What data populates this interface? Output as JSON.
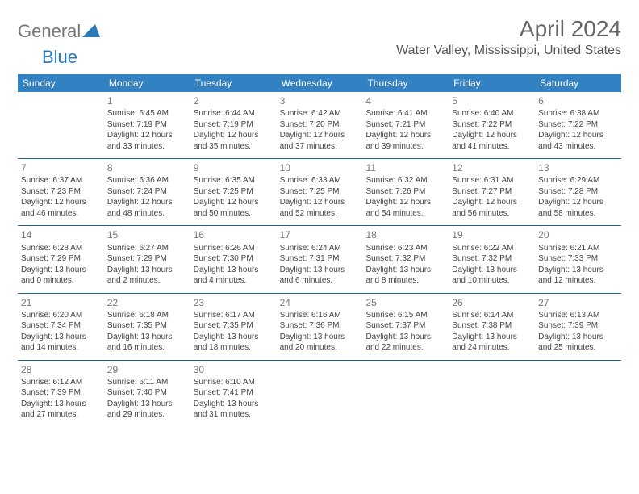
{
  "brand": {
    "part1": "General",
    "part2": "Blue"
  },
  "title": "April 2024",
  "location": "Water Valley, Mississippi, United States",
  "colors": {
    "header_bg": "#3282c3",
    "header_fg": "#ffffff",
    "week_border": "#1f5f8f",
    "body_bg": "#ffffff",
    "text": "#555",
    "brand_gray": "#777",
    "brand_blue": "#2b78b8"
  },
  "typography": {
    "title_fontsize": 28,
    "location_fontsize": 16,
    "dayheader_fontsize": 12,
    "daynum_fontsize": 12,
    "cell_fontsize": 10,
    "logo_fontsize": 22
  },
  "day_names": [
    "Sunday",
    "Monday",
    "Tuesday",
    "Wednesday",
    "Thursday",
    "Friday",
    "Saturday"
  ],
  "weeks": [
    [
      null,
      {
        "n": "1",
        "sr": "Sunrise: 6:45 AM",
        "ss": "Sunset: 7:19 PM",
        "d1": "Daylight: 12 hours",
        "d2": "and 33 minutes."
      },
      {
        "n": "2",
        "sr": "Sunrise: 6:44 AM",
        "ss": "Sunset: 7:19 PM",
        "d1": "Daylight: 12 hours",
        "d2": "and 35 minutes."
      },
      {
        "n": "3",
        "sr": "Sunrise: 6:42 AM",
        "ss": "Sunset: 7:20 PM",
        "d1": "Daylight: 12 hours",
        "d2": "and 37 minutes."
      },
      {
        "n": "4",
        "sr": "Sunrise: 6:41 AM",
        "ss": "Sunset: 7:21 PM",
        "d1": "Daylight: 12 hours",
        "d2": "and 39 minutes."
      },
      {
        "n": "5",
        "sr": "Sunrise: 6:40 AM",
        "ss": "Sunset: 7:22 PM",
        "d1": "Daylight: 12 hours",
        "d2": "and 41 minutes."
      },
      {
        "n": "6",
        "sr": "Sunrise: 6:38 AM",
        "ss": "Sunset: 7:22 PM",
        "d1": "Daylight: 12 hours",
        "d2": "and 43 minutes."
      }
    ],
    [
      {
        "n": "7",
        "sr": "Sunrise: 6:37 AM",
        "ss": "Sunset: 7:23 PM",
        "d1": "Daylight: 12 hours",
        "d2": "and 46 minutes."
      },
      {
        "n": "8",
        "sr": "Sunrise: 6:36 AM",
        "ss": "Sunset: 7:24 PM",
        "d1": "Daylight: 12 hours",
        "d2": "and 48 minutes."
      },
      {
        "n": "9",
        "sr": "Sunrise: 6:35 AM",
        "ss": "Sunset: 7:25 PM",
        "d1": "Daylight: 12 hours",
        "d2": "and 50 minutes."
      },
      {
        "n": "10",
        "sr": "Sunrise: 6:33 AM",
        "ss": "Sunset: 7:25 PM",
        "d1": "Daylight: 12 hours",
        "d2": "and 52 minutes."
      },
      {
        "n": "11",
        "sr": "Sunrise: 6:32 AM",
        "ss": "Sunset: 7:26 PM",
        "d1": "Daylight: 12 hours",
        "d2": "and 54 minutes."
      },
      {
        "n": "12",
        "sr": "Sunrise: 6:31 AM",
        "ss": "Sunset: 7:27 PM",
        "d1": "Daylight: 12 hours",
        "d2": "and 56 minutes."
      },
      {
        "n": "13",
        "sr": "Sunrise: 6:29 AM",
        "ss": "Sunset: 7:28 PM",
        "d1": "Daylight: 12 hours",
        "d2": "and 58 minutes."
      }
    ],
    [
      {
        "n": "14",
        "sr": "Sunrise: 6:28 AM",
        "ss": "Sunset: 7:29 PM",
        "d1": "Daylight: 13 hours",
        "d2": "and 0 minutes."
      },
      {
        "n": "15",
        "sr": "Sunrise: 6:27 AM",
        "ss": "Sunset: 7:29 PM",
        "d1": "Daylight: 13 hours",
        "d2": "and 2 minutes."
      },
      {
        "n": "16",
        "sr": "Sunrise: 6:26 AM",
        "ss": "Sunset: 7:30 PM",
        "d1": "Daylight: 13 hours",
        "d2": "and 4 minutes."
      },
      {
        "n": "17",
        "sr": "Sunrise: 6:24 AM",
        "ss": "Sunset: 7:31 PM",
        "d1": "Daylight: 13 hours",
        "d2": "and 6 minutes."
      },
      {
        "n": "18",
        "sr": "Sunrise: 6:23 AM",
        "ss": "Sunset: 7:32 PM",
        "d1": "Daylight: 13 hours",
        "d2": "and 8 minutes."
      },
      {
        "n": "19",
        "sr": "Sunrise: 6:22 AM",
        "ss": "Sunset: 7:32 PM",
        "d1": "Daylight: 13 hours",
        "d2": "and 10 minutes."
      },
      {
        "n": "20",
        "sr": "Sunrise: 6:21 AM",
        "ss": "Sunset: 7:33 PM",
        "d1": "Daylight: 13 hours",
        "d2": "and 12 minutes."
      }
    ],
    [
      {
        "n": "21",
        "sr": "Sunrise: 6:20 AM",
        "ss": "Sunset: 7:34 PM",
        "d1": "Daylight: 13 hours",
        "d2": "and 14 minutes."
      },
      {
        "n": "22",
        "sr": "Sunrise: 6:18 AM",
        "ss": "Sunset: 7:35 PM",
        "d1": "Daylight: 13 hours",
        "d2": "and 16 minutes."
      },
      {
        "n": "23",
        "sr": "Sunrise: 6:17 AM",
        "ss": "Sunset: 7:35 PM",
        "d1": "Daylight: 13 hours",
        "d2": "and 18 minutes."
      },
      {
        "n": "24",
        "sr": "Sunrise: 6:16 AM",
        "ss": "Sunset: 7:36 PM",
        "d1": "Daylight: 13 hours",
        "d2": "and 20 minutes."
      },
      {
        "n": "25",
        "sr": "Sunrise: 6:15 AM",
        "ss": "Sunset: 7:37 PM",
        "d1": "Daylight: 13 hours",
        "d2": "and 22 minutes."
      },
      {
        "n": "26",
        "sr": "Sunrise: 6:14 AM",
        "ss": "Sunset: 7:38 PM",
        "d1": "Daylight: 13 hours",
        "d2": "and 24 minutes."
      },
      {
        "n": "27",
        "sr": "Sunrise: 6:13 AM",
        "ss": "Sunset: 7:39 PM",
        "d1": "Daylight: 13 hours",
        "d2": "and 25 minutes."
      }
    ],
    [
      {
        "n": "28",
        "sr": "Sunrise: 6:12 AM",
        "ss": "Sunset: 7:39 PM",
        "d1": "Daylight: 13 hours",
        "d2": "and 27 minutes."
      },
      {
        "n": "29",
        "sr": "Sunrise: 6:11 AM",
        "ss": "Sunset: 7:40 PM",
        "d1": "Daylight: 13 hours",
        "d2": "and 29 minutes."
      },
      {
        "n": "30",
        "sr": "Sunrise: 6:10 AM",
        "ss": "Sunset: 7:41 PM",
        "d1": "Daylight: 13 hours",
        "d2": "and 31 minutes."
      },
      null,
      null,
      null,
      null
    ]
  ]
}
